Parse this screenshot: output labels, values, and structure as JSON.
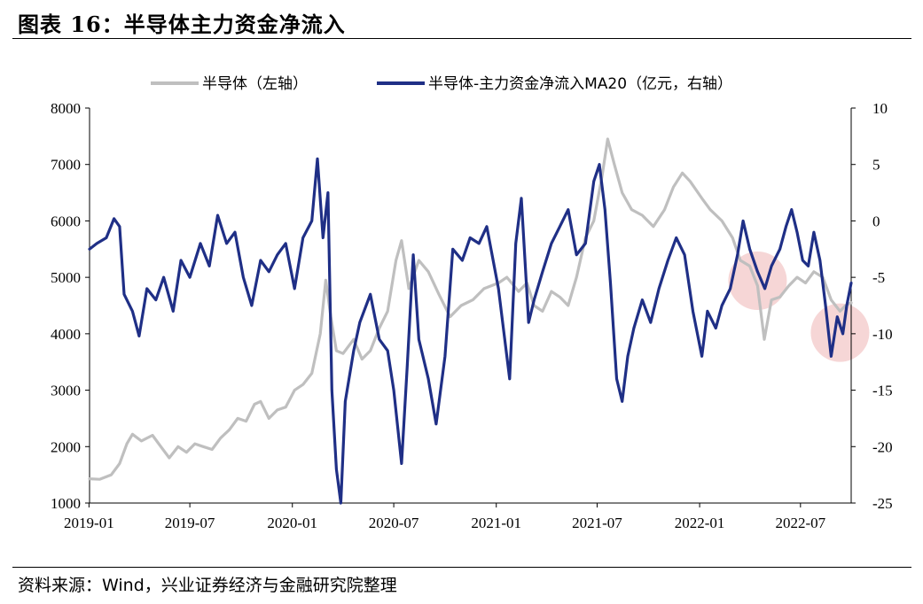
{
  "header": {
    "title": "图表 16：半导体主力资金净流入"
  },
  "footer": {
    "source": "资料来源：Wind，兴业证券经济与金融研究院整理"
  },
  "colors": {
    "semiconductor_index": "#bfbfbf",
    "net_inflow_ma20": "#1f2f86",
    "highlight": "#f2c4c4"
  },
  "chart_data": {
    "type": "line",
    "x_ticks": [
      "2019-01",
      "2019-07",
      "2020-01",
      "2020-07",
      "2021-01",
      "2021-07",
      "2022-01",
      "2022-07"
    ],
    "x_range": [
      "2019-01-02",
      "2022-09-30"
    ],
    "y_left": {
      "ylim": [
        1000,
        8000
      ],
      "ticks": [
        1000,
        2000,
        3000,
        4000,
        5000,
        6000,
        7000,
        8000
      ]
    },
    "y_right": {
      "ylim": [
        -25,
        10
      ],
      "ticks": [
        -25,
        -20,
        -15,
        -10,
        -5,
        0,
        5,
        10
      ]
    },
    "legend_position": "top",
    "series": [
      {
        "name": "半导体（左轴）",
        "axis": "left",
        "points": [
          [
            "2019-01-02",
            1430
          ],
          [
            "2019-01-20",
            1420
          ],
          [
            "2019-02-10",
            1500
          ],
          [
            "2019-02-25",
            1700
          ],
          [
            "2019-03-10",
            2050
          ],
          [
            "2019-03-20",
            2220
          ],
          [
            "2019-04-05",
            2100
          ],
          [
            "2019-04-25",
            2200
          ],
          [
            "2019-05-10",
            2000
          ],
          [
            "2019-05-25",
            1800
          ],
          [
            "2019-06-10",
            2000
          ],
          [
            "2019-06-25",
            1900
          ],
          [
            "2019-07-10",
            2050
          ],
          [
            "2019-07-25",
            2000
          ],
          [
            "2019-08-10",
            1950
          ],
          [
            "2019-08-25",
            2150
          ],
          [
            "2019-09-10",
            2300
          ],
          [
            "2019-09-25",
            2500
          ],
          [
            "2019-10-10",
            2450
          ],
          [
            "2019-10-25",
            2750
          ],
          [
            "2019-11-05",
            2800
          ],
          [
            "2019-11-20",
            2500
          ],
          [
            "2019-12-05",
            2650
          ],
          [
            "2019-12-20",
            2700
          ],
          [
            "2020-01-05",
            3000
          ],
          [
            "2020-01-20",
            3100
          ],
          [
            "2020-02-05",
            3300
          ],
          [
            "2020-02-20",
            4000
          ],
          [
            "2020-03-01",
            4950
          ],
          [
            "2020-03-10",
            4300
          ],
          [
            "2020-03-20",
            3700
          ],
          [
            "2020-04-01",
            3650
          ],
          [
            "2020-04-20",
            3900
          ],
          [
            "2020-05-05",
            3550
          ],
          [
            "2020-05-20",
            3700
          ],
          [
            "2020-06-05",
            4100
          ],
          [
            "2020-06-20",
            4400
          ],
          [
            "2020-07-05",
            5300
          ],
          [
            "2020-07-15",
            5650
          ],
          [
            "2020-07-28",
            4800
          ],
          [
            "2020-08-15",
            5300
          ],
          [
            "2020-09-01",
            5100
          ],
          [
            "2020-09-20",
            4700
          ],
          [
            "2020-10-10",
            4300
          ],
          [
            "2020-10-30",
            4500
          ],
          [
            "2020-11-20",
            4600
          ],
          [
            "2020-12-10",
            4800
          ],
          [
            "2021-01-05",
            4900
          ],
          [
            "2021-01-20",
            5000
          ],
          [
            "2021-02-10",
            4750
          ],
          [
            "2021-02-25",
            4900
          ],
          [
            "2021-03-10",
            4500
          ],
          [
            "2021-03-25",
            4400
          ],
          [
            "2021-04-10",
            4750
          ],
          [
            "2021-04-25",
            4650
          ],
          [
            "2021-05-10",
            4500
          ],
          [
            "2021-05-25",
            5000
          ],
          [
            "2021-06-10",
            5700
          ],
          [
            "2021-06-25",
            6000
          ],
          [
            "2021-07-10",
            6800
          ],
          [
            "2021-07-20",
            7450
          ],
          [
            "2021-08-01",
            7000
          ],
          [
            "2021-08-15",
            6500
          ],
          [
            "2021-09-01",
            6200
          ],
          [
            "2021-09-20",
            6100
          ],
          [
            "2021-10-10",
            5900
          ],
          [
            "2021-10-30",
            6200
          ],
          [
            "2021-11-15",
            6600
          ],
          [
            "2021-12-01",
            6850
          ],
          [
            "2021-12-15",
            6700
          ],
          [
            "2022-01-05",
            6400
          ],
          [
            "2022-01-20",
            6200
          ],
          [
            "2022-02-10",
            6000
          ],
          [
            "2022-03-01",
            5700
          ],
          [
            "2022-03-15",
            5300
          ],
          [
            "2022-04-01",
            5200
          ],
          [
            "2022-04-15",
            4850
          ],
          [
            "2022-04-27",
            3900
          ],
          [
            "2022-05-10",
            4600
          ],
          [
            "2022-05-25",
            4650
          ],
          [
            "2022-06-10",
            4850
          ],
          [
            "2022-06-25",
            5000
          ],
          [
            "2022-07-10",
            4900
          ],
          [
            "2022-07-25",
            5100
          ],
          [
            "2022-08-10",
            5000
          ],
          [
            "2022-08-25",
            4600
          ],
          [
            "2022-09-10",
            4400
          ],
          [
            "2022-09-20",
            4500
          ],
          [
            "2022-09-30",
            4550
          ]
        ]
      },
      {
        "name": "半导体-主力资金净流入MA20（亿元，右轴）",
        "axis": "right",
        "points": [
          [
            "2019-01-02",
            -2.5
          ],
          [
            "2019-01-15",
            -2.0
          ],
          [
            "2019-02-01",
            -1.5
          ],
          [
            "2019-02-15",
            0.2
          ],
          [
            "2019-02-25",
            -0.5
          ],
          [
            "2019-03-05",
            -6.5
          ],
          [
            "2019-03-20",
            -8.0
          ],
          [
            "2019-04-01",
            -10.2
          ],
          [
            "2019-04-15",
            -6.0
          ],
          [
            "2019-05-01",
            -7.0
          ],
          [
            "2019-05-15",
            -5.0
          ],
          [
            "2019-06-01",
            -8.0
          ],
          [
            "2019-06-15",
            -3.5
          ],
          [
            "2019-07-01",
            -5.0
          ],
          [
            "2019-07-20",
            -2.0
          ],
          [
            "2019-08-05",
            -4.0
          ],
          [
            "2019-08-20",
            0.5
          ],
          [
            "2019-09-05",
            -2.0
          ],
          [
            "2019-09-20",
            -1.0
          ],
          [
            "2019-10-05",
            -5.0
          ],
          [
            "2019-10-20",
            -7.5
          ],
          [
            "2019-11-05",
            -3.5
          ],
          [
            "2019-11-20",
            -4.5
          ],
          [
            "2019-12-05",
            -3.0
          ],
          [
            "2019-12-20",
            -2.0
          ],
          [
            "2020-01-05",
            -6.0
          ],
          [
            "2020-01-20",
            -1.5
          ],
          [
            "2020-02-05",
            0.0
          ],
          [
            "2020-02-15",
            5.5
          ],
          [
            "2020-02-25",
            -1.5
          ],
          [
            "2020-03-05",
            2.5
          ],
          [
            "2020-03-12",
            -15.0
          ],
          [
            "2020-03-20",
            -22.0
          ],
          [
            "2020-03-28",
            -25.0
          ],
          [
            "2020-04-05",
            -16.0
          ],
          [
            "2020-04-20",
            -11.5
          ],
          [
            "2020-05-01",
            -9.0
          ],
          [
            "2020-05-20",
            -6.5
          ],
          [
            "2020-06-05",
            -10.5
          ],
          [
            "2020-06-20",
            -11.5
          ],
          [
            "2020-07-01",
            -15.0
          ],
          [
            "2020-07-15",
            -21.5
          ],
          [
            "2020-07-25",
            -13.0
          ],
          [
            "2020-08-05",
            -3.0
          ],
          [
            "2020-08-15",
            -10.5
          ],
          [
            "2020-09-01",
            -14.0
          ],
          [
            "2020-09-15",
            -18.0
          ],
          [
            "2020-10-01",
            -12.0
          ],
          [
            "2020-10-15",
            -2.5
          ],
          [
            "2020-11-01",
            -3.5
          ],
          [
            "2020-11-15",
            -1.5
          ],
          [
            "2020-12-01",
            -2.0
          ],
          [
            "2020-12-15",
            -0.5
          ],
          [
            "2021-01-05",
            -6.0
          ],
          [
            "2021-01-15",
            -10.0
          ],
          [
            "2021-01-25",
            -14.0
          ],
          [
            "2021-02-05",
            -2.0
          ],
          [
            "2021-02-15",
            2.0
          ],
          [
            "2021-02-28",
            -9.0
          ],
          [
            "2021-03-10",
            -7.0
          ],
          [
            "2021-03-25",
            -4.5
          ],
          [
            "2021-04-10",
            -2.0
          ],
          [
            "2021-04-25",
            -0.5
          ],
          [
            "2021-05-10",
            1.0
          ],
          [
            "2021-05-25",
            -3.0
          ],
          [
            "2021-06-10",
            -2.0
          ],
          [
            "2021-06-25",
            3.5
          ],
          [
            "2021-07-05",
            5.0
          ],
          [
            "2021-07-15",
            1.0
          ],
          [
            "2021-07-25",
            -5.5
          ],
          [
            "2021-08-05",
            -14.0
          ],
          [
            "2021-08-15",
            -16.0
          ],
          [
            "2021-08-25",
            -12.0
          ],
          [
            "2021-09-05",
            -9.5
          ],
          [
            "2021-09-20",
            -7.0
          ],
          [
            "2021-10-05",
            -9.0
          ],
          [
            "2021-10-20",
            -6.0
          ],
          [
            "2021-11-05",
            -3.5
          ],
          [
            "2021-11-20",
            -1.5
          ],
          [
            "2021-12-05",
            -3.0
          ],
          [
            "2021-12-20",
            -8.0
          ],
          [
            "2022-01-05",
            -12.0
          ],
          [
            "2022-01-15",
            -8.0
          ],
          [
            "2022-01-30",
            -9.5
          ],
          [
            "2022-02-10",
            -7.5
          ],
          [
            "2022-02-25",
            -6.0
          ],
          [
            "2022-03-10",
            -3.0
          ],
          [
            "2022-03-20",
            0.0
          ],
          [
            "2022-04-01",
            -2.5
          ],
          [
            "2022-04-15",
            -4.5
          ],
          [
            "2022-04-28",
            -6.0
          ],
          [
            "2022-05-10",
            -4.0
          ],
          [
            "2022-05-25",
            -2.5
          ],
          [
            "2022-06-05",
            -0.5
          ],
          [
            "2022-06-15",
            1.0
          ],
          [
            "2022-06-25",
            -1.0
          ],
          [
            "2022-07-05",
            -3.5
          ],
          [
            "2022-07-15",
            -4.0
          ],
          [
            "2022-07-25",
            -1.0
          ],
          [
            "2022-08-05",
            -3.5
          ],
          [
            "2022-08-15",
            -7.5
          ],
          [
            "2022-08-25",
            -12.0
          ],
          [
            "2022-09-05",
            -8.5
          ],
          [
            "2022-09-15",
            -10.0
          ],
          [
            "2022-09-22",
            -7.5
          ],
          [
            "2022-09-30",
            -5.5
          ]
        ]
      }
    ],
    "highlights": [
      {
        "center": [
          "2022-04-15",
          -5.3
        ],
        "axis": "right"
      },
      {
        "center": [
          "2022-09-10",
          -9.9
        ],
        "axis": "right"
      }
    ]
  }
}
